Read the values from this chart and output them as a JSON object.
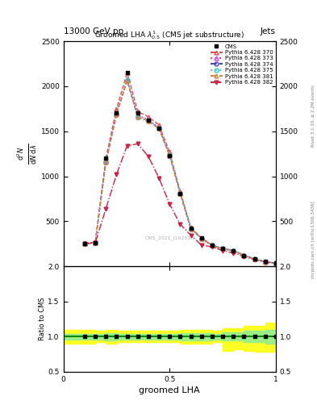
{
  "title_top": "13000 GeV pp",
  "title_right": "Jets",
  "plot_title": "Groomed LHA $\\lambda^{1}_{0.5}$ (CMS jet substructure)",
  "xlabel": "groomed LHA",
  "ylabel_ratio": "Ratio to CMS",
  "watermark": "CMS_2021_I192018",
  "rivet_text": "Rivet 3.1.10, ≥ 2.2M events",
  "arxiv_text": "mcplots.cern.ch [arXiv:1306.3436]",
  "x_data": [
    0.1,
    0.15,
    0.2,
    0.25,
    0.3,
    0.35,
    0.4,
    0.45,
    0.5,
    0.55,
    0.6,
    0.65,
    0.7,
    0.75,
    0.8,
    0.85,
    0.9,
    0.95,
    1.0
  ],
  "cms_y": [
    250,
    260,
    1200,
    1700,
    2150,
    1700,
    1620,
    1530,
    1230,
    810,
    420,
    310,
    230,
    195,
    175,
    120,
    80,
    50,
    35
  ],
  "pythia_370_y": [
    255,
    270,
    1200,
    1750,
    2150,
    1720,
    1660,
    1570,
    1270,
    830,
    430,
    315,
    235,
    198,
    178,
    125,
    82,
    52,
    36
  ],
  "pythia_373_y": [
    250,
    265,
    1170,
    1710,
    2080,
    1680,
    1630,
    1545,
    1245,
    815,
    420,
    310,
    232,
    196,
    175,
    122,
    80,
    50,
    34
  ],
  "pythia_374_y": [
    248,
    262,
    1155,
    1690,
    2060,
    1660,
    1615,
    1530,
    1232,
    808,
    415,
    308,
    230,
    194,
    173,
    120,
    78,
    49,
    33
  ],
  "pythia_375_y": [
    249,
    263,
    1160,
    1700,
    2070,
    1670,
    1622,
    1538,
    1238,
    811,
    417,
    309,
    231,
    195,
    174,
    121,
    79,
    49,
    33
  ],
  "pythia_381_y": [
    248,
    262,
    1155,
    1690,
    2060,
    1660,
    1615,
    1530,
    1232,
    808,
    415,
    308,
    230,
    194,
    173,
    120,
    78,
    49,
    33
  ],
  "pythia_382_y": [
    250,
    260,
    640,
    1020,
    1340,
    1360,
    1220,
    980,
    690,
    465,
    345,
    235,
    215,
    175,
    148,
    108,
    73,
    47,
    32
  ],
  "x_ratio_edges": [
    0.0,
    0.1,
    0.15,
    0.2,
    0.25,
    0.3,
    0.35,
    0.4,
    0.45,
    0.5,
    0.55,
    0.6,
    0.65,
    0.7,
    0.75,
    0.8,
    0.85,
    0.9,
    0.95,
    1.0
  ],
  "ratio_yellow_upper": [
    1.1,
    1.1,
    1.08,
    1.1,
    1.08,
    1.08,
    1.08,
    1.08,
    1.08,
    1.08,
    1.1,
    1.1,
    1.1,
    1.08,
    1.12,
    1.12,
    1.15,
    1.15,
    1.2
  ],
  "ratio_yellow_lower": [
    0.9,
    0.9,
    0.92,
    0.9,
    0.92,
    0.92,
    0.92,
    0.92,
    0.92,
    0.92,
    0.9,
    0.9,
    0.9,
    0.92,
    0.8,
    0.82,
    0.8,
    0.78,
    0.78
  ],
  "ratio_green_upper": [
    1.04,
    1.04,
    1.04,
    1.05,
    1.04,
    1.04,
    1.04,
    1.04,
    1.04,
    1.04,
    1.05,
    1.05,
    1.05,
    1.04,
    1.06,
    1.06,
    1.08,
    1.08,
    1.1
  ],
  "ratio_green_lower": [
    0.96,
    0.96,
    0.96,
    0.95,
    0.96,
    0.96,
    0.96,
    0.96,
    0.96,
    0.96,
    0.95,
    0.95,
    0.95,
    0.96,
    0.94,
    0.94,
    0.92,
    0.92,
    0.9
  ],
  "ylim_main": [
    0,
    2500
  ],
  "ylim_ratio": [
    0.5,
    2.0
  ],
  "xlim": [
    0.0,
    1.0
  ],
  "yticks_main": [
    500,
    1000,
    1500,
    2000,
    2500
  ],
  "yticks_ratio": [
    0.5,
    1.0,
    1.5,
    2.0
  ],
  "xticks": [
    0,
    0.5,
    1
  ],
  "colors": {
    "cms": "black",
    "p370": "#e05050",
    "p373": "#cc44cc",
    "p374": "#4444bb",
    "p375": "#44cccc",
    "p381": "#cc8844",
    "p382": "#cc2244"
  }
}
